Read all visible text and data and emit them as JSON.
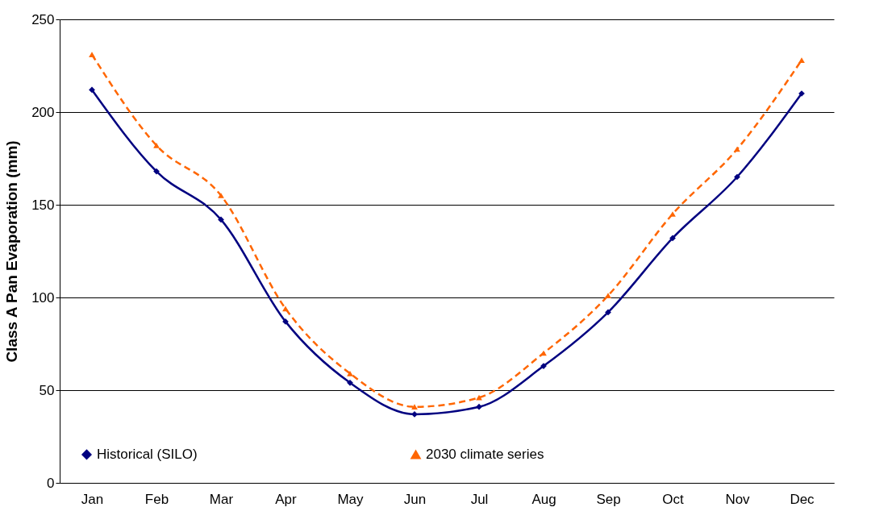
{
  "chart_data": {
    "type": "line",
    "ylabel": "Class A Pan Evaporation (mm)",
    "categories": [
      "Jan",
      "Feb",
      "Mar",
      "Apr",
      "May",
      "Jun",
      "Jul",
      "Aug",
      "Sep",
      "Oct",
      "Nov",
      "Dec"
    ],
    "series": [
      {
        "name": "Historical (SILO)",
        "color": "#000080",
        "marker": "diamond",
        "line_style": "solid",
        "values": [
          212,
          168,
          142,
          87,
          54,
          37,
          41,
          63,
          92,
          132,
          165,
          210
        ]
      },
      {
        "name": "2030 climate series",
        "color": "#ff6600",
        "marker": "triangle",
        "line_style": "dashed",
        "values": [
          231,
          182,
          155,
          94,
          59,
          41,
          46,
          70,
          101,
          145,
          180,
          228
        ]
      }
    ],
    "ylim": [
      0,
      250
    ],
    "yticks": [
      0,
      50,
      100,
      150,
      200,
      250
    ],
    "grid": "y",
    "legend": "bottom"
  }
}
